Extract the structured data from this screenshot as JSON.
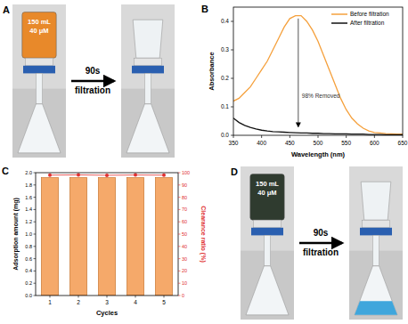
{
  "chart_data": [
    {
      "type": "line",
      "label": "B",
      "x_label": "Wavelength (nm)",
      "y_label": "Absorbance",
      "annotation": "98% Removed",
      "legend": "upper right",
      "xlim": [
        350,
        650
      ],
      "xticks": [
        350,
        400,
        450,
        500,
        550,
        600,
        650
      ],
      "ylim": [
        0,
        0.45
      ],
      "yticks": [
        {
          "value": 0,
          "label": "0.0"
        },
        0.1,
        0.2,
        0.3,
        0.4
      ],
      "x": [
        350,
        360,
        370,
        380,
        390,
        400,
        410,
        420,
        430,
        440,
        450,
        460,
        470,
        480,
        490,
        500,
        510,
        520,
        530,
        540,
        550,
        560,
        570,
        580,
        590,
        600,
        610,
        620,
        630,
        640,
        650
      ],
      "series": [
        {
          "name": "Before filtration",
          "color": "#f5a03c",
          "values": [
            0.12,
            0.13,
            0.15,
            0.17,
            0.2,
            0.23,
            0.26,
            0.3,
            0.34,
            0.38,
            0.41,
            0.42,
            0.42,
            0.4,
            0.37,
            0.33,
            0.28,
            0.23,
            0.18,
            0.13,
            0.09,
            0.06,
            0.04,
            0.025,
            0.015,
            0.01,
            0.008,
            0.006,
            0.005,
            0.004,
            0.004
          ]
        },
        {
          "name": "After filtration",
          "color": "#111111",
          "values": [
            0.06,
            0.045,
            0.035,
            0.028,
            0.022,
            0.018,
            0.015,
            0.013,
            0.012,
            0.011,
            0.01,
            0.009,
            0.008,
            0.008,
            0.007,
            0.007,
            0.006,
            0.006,
            0.005,
            0.005,
            0.005,
            0.004,
            0.004,
            0.004,
            0.003,
            0.003,
            0.003,
            0.002,
            0.002,
            0.002,
            0.002
          ]
        }
      ]
    },
    {
      "type": "bar",
      "label": "C",
      "x_label": "Cycles",
      "y_label": "Adsorption amount (mg)",
      "y2_label": "Clearance ratio (%)",
      "categories": [
        "1",
        "2",
        "3",
        "4",
        "5"
      ],
      "ylim": [
        0,
        2
      ],
      "yticks": [
        {
          "value": 0,
          "label": "0.0"
        },
        0.2,
        0.4,
        0.6,
        0.8,
        {
          "value": 1,
          "label": "1.0"
        },
        1.2,
        1.4,
        1.6,
        1.8,
        {
          "value": 2,
          "label": "2.0"
        }
      ],
      "y2lim": [
        0,
        100
      ],
      "y2ticks": [
        0,
        10,
        20,
        30,
        40,
        50,
        60,
        70,
        80,
        90,
        100
      ],
      "series": [
        {
          "type": "bar",
          "color": "#f5a96a",
          "values": [
            1.92,
            1.92,
            1.92,
            1.92,
            1.92
          ]
        },
        {
          "type": "line",
          "axis": "y2",
          "color": "#e03030",
          "marker": "circle",
          "values": [
            98.0,
            98.2,
            97.9,
            98.1,
            98.0
          ]
        }
      ]
    }
  ],
  "panels": [
    {
      "label": "A",
      "volume": "150 mL",
      "concentration": "40 μM",
      "time": "90s",
      "action": "filtration"
    },
    {
      "label": "D",
      "volume": "150 mL",
      "concentration": "40 μM",
      "time": "90s",
      "action": "filtration"
    }
  ]
}
